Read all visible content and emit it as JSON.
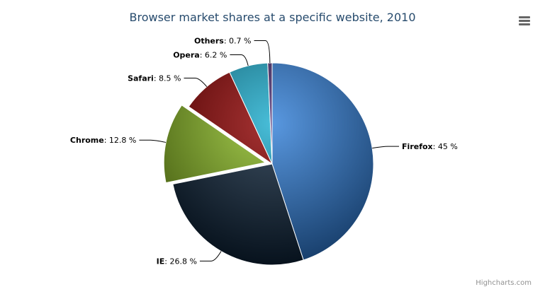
{
  "chart_data": {
    "type": "pie",
    "title": "Browser market shares at a specific website, 2010",
    "unit": "%",
    "slices": [
      {
        "name": "Firefox",
        "value": 45.0,
        "color": "#2f7ed8",
        "sliced": false
      },
      {
        "name": "IE",
        "value": 26.8,
        "color": "#0d233a",
        "sliced": false
      },
      {
        "name": "Chrome",
        "value": 12.8,
        "color": "#8bbc21",
        "sliced": true
      },
      {
        "name": "Safari",
        "value": 8.5,
        "color": "#910000",
        "sliced": false
      },
      {
        "name": "Opera",
        "value": 6.2,
        "color": "#1aadce",
        "sliced": false
      },
      {
        "name": "Others",
        "value": 0.7,
        "color": "#492970",
        "sliced": false
      }
    ],
    "legend": "none"
  },
  "credits": "Highcharts.com",
  "menu_icon": "hamburger-menu-icon"
}
